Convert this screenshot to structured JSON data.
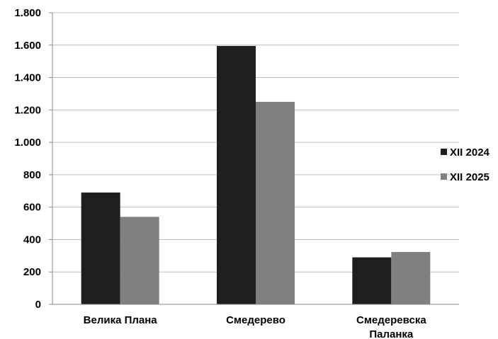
{
  "chart_data": {
    "type": "bar",
    "categories": [
      [
        "Велика Плана"
      ],
      [
        "Смедерево"
      ],
      [
        "Смедеревска",
        "Паланка"
      ]
    ],
    "series": [
      {
        "name": "XII 2024",
        "color": "#1e1e1e",
        "values": [
          690,
          1595,
          290
        ]
      },
      {
        "name": "XII 2025",
        "color": "#808080",
        "values": [
          540,
          1250,
          323
        ]
      }
    ],
    "ylim": [
      0,
      1800
    ],
    "yticks": [
      0,
      200,
      400,
      600,
      800,
      1000,
      1200,
      1400,
      1600,
      1800
    ],
    "ytick_labels": [
      "0",
      "200",
      "400",
      "600",
      "800",
      "1.000",
      "1.200",
      "1.400",
      "1.600",
      "1.800"
    ],
    "grid": true,
    "legend_position": "right",
    "title": "",
    "xlabel": "",
    "ylabel": ""
  }
}
